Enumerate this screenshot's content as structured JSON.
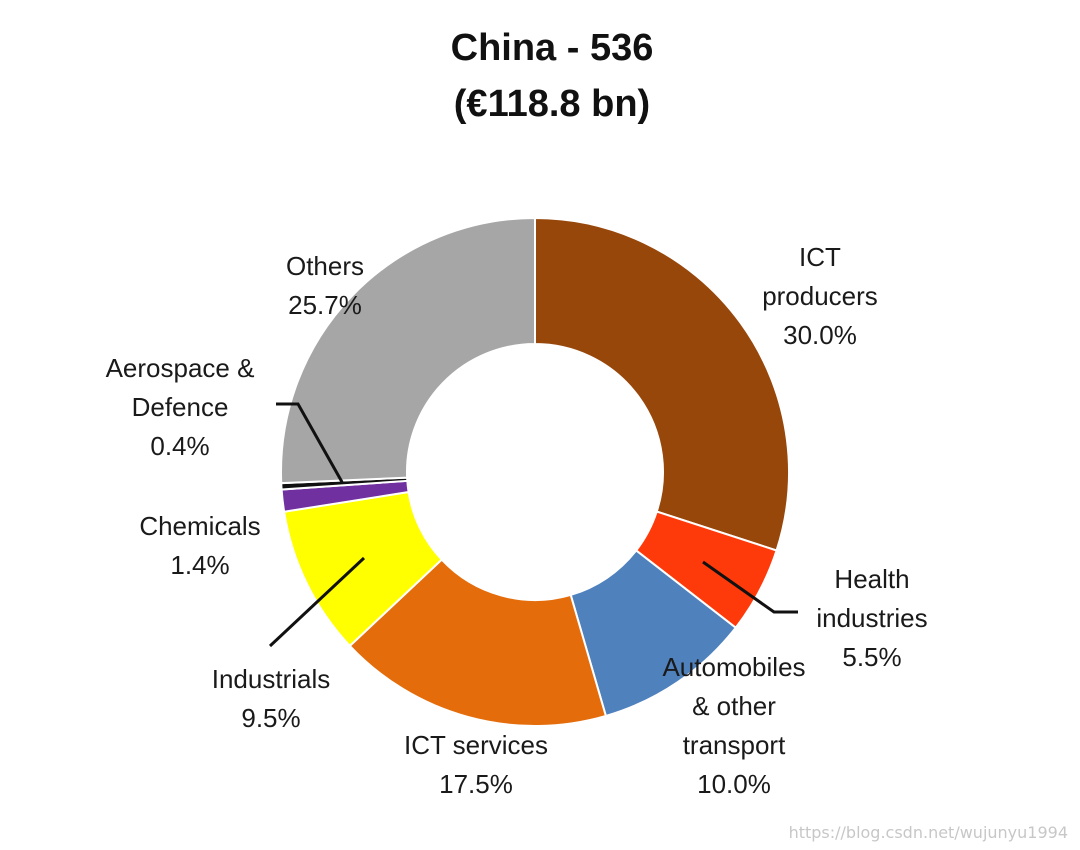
{
  "chart_data": {
    "type": "pie",
    "variant": "donut",
    "title": "China  - 536",
    "subtitle": "(€118.8 bn)",
    "start_angle_deg": 0,
    "direction": "clockwise",
    "slices": [
      {
        "name": "ICT producers",
        "label_lines": [
          "ICT",
          "producers",
          "30.0%"
        ],
        "value": 30.0,
        "color": "#98470B"
      },
      {
        "name": "Health industries",
        "label_lines": [
          "Health",
          "industries",
          "5.5%"
        ],
        "value": 5.5,
        "color": "#FF3A0A"
      },
      {
        "name": "Automobiles & other transport",
        "label_lines": [
          "Automobiles",
          "& other",
          "transport",
          "10.0%"
        ],
        "value": 10.0,
        "color": "#4F81BD"
      },
      {
        "name": "ICT services",
        "label_lines": [
          "ICT services",
          "17.5%"
        ],
        "value": 17.5,
        "color": "#E46C0A"
      },
      {
        "name": "Industrials",
        "label_lines": [
          "Industrials",
          "9.5%"
        ],
        "value": 9.5,
        "color": "#FFFF00"
      },
      {
        "name": "Chemicals",
        "label_lines": [
          "Chemicals",
          "1.4%"
        ],
        "value": 1.4,
        "color": "#7030A0"
      },
      {
        "name": "Aerospace & Defence",
        "label_lines": [
          "Aerospace &",
          "Defence",
          "0.4%"
        ],
        "value": 0.4,
        "color": "#111111"
      },
      {
        "name": "Others",
        "label_lines": [
          "Others",
          "25.7%"
        ],
        "value": 25.7,
        "color": "#A6A6A6"
      }
    ]
  },
  "watermark": "https://blog.csdn.net/wujunyu1994"
}
